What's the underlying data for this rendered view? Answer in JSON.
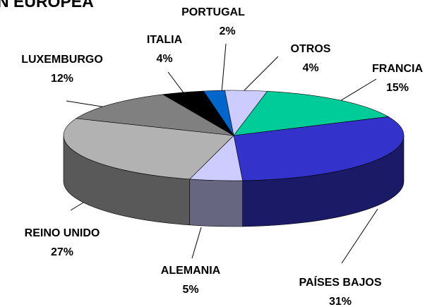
{
  "chart_data": {
    "type": "pie",
    "title": "N EUROPEA",
    "categories": [
      "OTROS",
      "FRANCIA",
      "PAÍSES BAJOS",
      "ALEMANIA",
      "REINO UNIDO",
      "LUXEMBURGO",
      "ITALIA",
      "PORTUGAL"
    ],
    "values": [
      4,
      15,
      31,
      5,
      27,
      12,
      4,
      2
    ],
    "value_labels": [
      "4%",
      "15%",
      "31%",
      "5%",
      "27%",
      "12%",
      "4%",
      "2%"
    ],
    "colors": [
      "#ccccff",
      "#00cc99",
      "#3333cc",
      "#ccccff",
      "#b2b2b2",
      "#808080",
      "#000000",
      "#0066cc"
    ]
  }
}
